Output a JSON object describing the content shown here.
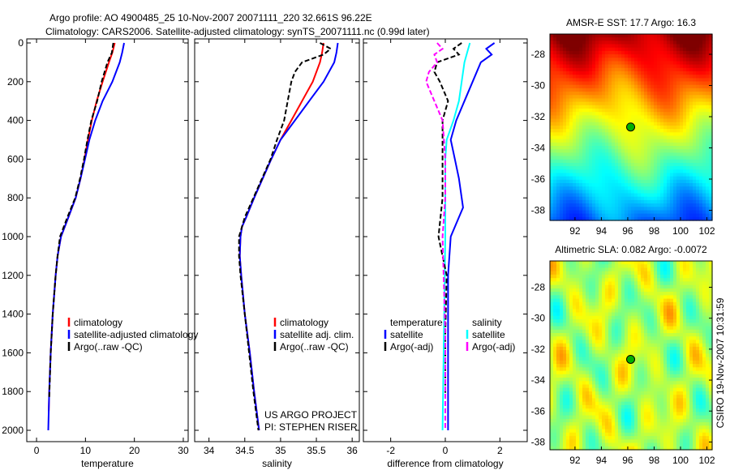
{
  "chart_data": [
    {
      "type": "line",
      "title": "Argo profile: AO 4900485_25 10-Nov-2007 20071111_220 32.661S 96.22E",
      "subtitle": "Climatology: CARS2006. Satellite-adjusted climatology: synTS_20071111.nc (0.99d later)",
      "xlabel": "temperature",
      "xlim": [
        -2,
        31
      ],
      "ylim": [
        2050,
        0
      ],
      "xticks": [
        0,
        10,
        20,
        30
      ],
      "yticks": [
        0,
        200,
        400,
        600,
        800,
        1000,
        1200,
        1400,
        1600,
        1800,
        2000
      ],
      "legend": [
        "climatology",
        "satellite-adjusted climatology",
        "Argo(..raw -QC)"
      ],
      "series": [
        {
          "name": "climatology",
          "color": "#ff0000",
          "depth": [
            0,
            50,
            100,
            200,
            300,
            400,
            500,
            600,
            700,
            800,
            900,
            1000,
            1100,
            1200,
            1400,
            1600,
            1800,
            1900
          ],
          "values": [
            16,
            15.5,
            14.8,
            13.5,
            12.3,
            11.3,
            10.5,
            9.8,
            9.0,
            8.0,
            6.5,
            5.0,
            4.3,
            3.9,
            3.3,
            2.9,
            2.6,
            2.5
          ]
        },
        {
          "name": "satellite-adjusted climatology",
          "color": "#0000ff",
          "depth": [
            0,
            50,
            100,
            200,
            300,
            400,
            500,
            600,
            700,
            800,
            900,
            1000,
            1100,
            1200,
            1400,
            1600,
            1800,
            2000
          ],
          "values": [
            17.9,
            17.5,
            17.0,
            15.5,
            13.5,
            12.0,
            10.8,
            9.9,
            9.0,
            8.0,
            6.5,
            5.0,
            4.3,
            3.9,
            3.3,
            2.9,
            2.6,
            2.4
          ]
        },
        {
          "name": "Argo(..raw -QC)",
          "color": "#000000",
          "dash": true,
          "depth": [
            0,
            50,
            100,
            200,
            300,
            400,
            500,
            600,
            700,
            800,
            900,
            1000,
            1100,
            1200,
            1400,
            1600,
            1830
          ],
          "values": [
            15.7,
            15.4,
            14.5,
            13.3,
            12.4,
            11.2,
            10.4,
            9.7,
            8.9,
            7.9,
            6.3,
            4.8,
            4.3,
            3.9,
            3.3,
            2.9,
            2.6
          ]
        }
      ]
    },
    {
      "type": "line",
      "xlabel": "salinity",
      "xlim": [
        33.8,
        36.1
      ],
      "ylim": [
        2050,
        0
      ],
      "xticks": [
        34,
        34.5,
        35,
        35.5,
        36
      ],
      "legend": [
        "climatology",
        "satellite adj. clim.",
        "Argo(..raw -QC)"
      ],
      "annotation": [
        "US ARGO PROJECT",
        "PI: STEPHEN RISER"
      ],
      "series": [
        {
          "name": "climatology",
          "color": "#ff0000",
          "depth": [
            0,
            50,
            100,
            200,
            300,
            400,
            500,
            600,
            700,
            800,
            900,
            950,
            1000,
            1100,
            1200,
            1400,
            1600,
            1800,
            2000
          ],
          "values": [
            35.6,
            35.58,
            35.55,
            35.45,
            35.3,
            35.15,
            35.0,
            34.87,
            34.75,
            34.63,
            34.52,
            34.46,
            34.44,
            34.43,
            34.45,
            34.5,
            34.57,
            34.63,
            34.7
          ]
        },
        {
          "name": "satellite adj. clim.",
          "color": "#0000ff",
          "depth": [
            0,
            50,
            100,
            200,
            300,
            400,
            500,
            600,
            700,
            800,
            900,
            950,
            1000,
            1100,
            1200,
            1400,
            1600,
            1800,
            2000
          ],
          "values": [
            35.8,
            35.78,
            35.75,
            35.6,
            35.4,
            35.2,
            35.0,
            34.87,
            34.75,
            34.63,
            34.52,
            34.46,
            34.44,
            34.43,
            34.45,
            34.5,
            34.57,
            34.63,
            34.7
          ]
        },
        {
          "name": "Argo(..raw -QC)",
          "color": "#000000",
          "dash": true,
          "depth": [
            0,
            30,
            60,
            100,
            150,
            200,
            300,
            400,
            500,
            600,
            700,
            800,
            900,
            1000,
            1100,
            1200,
            1400,
            1600,
            1800,
            2000
          ],
          "values": [
            35.55,
            35.7,
            35.6,
            35.3,
            35.2,
            35.15,
            35.1,
            35.05,
            34.95,
            34.86,
            34.74,
            34.62,
            34.5,
            34.42,
            34.42,
            34.44,
            34.5,
            34.56,
            34.62,
            34.69
          ]
        }
      ]
    },
    {
      "type": "line",
      "xlabel": "difference from climatology",
      "xlim": [
        -3,
        3
      ],
      "ylim": [
        2050,
        0
      ],
      "xticks": [
        -2,
        0,
        2
      ],
      "legend_headers": [
        "temperature",
        "salinity"
      ],
      "legend": [
        "satellite",
        "Argo(-adj)",
        "satellite",
        "Argo(-adj)"
      ],
      "series": [
        {
          "name": "temperature satellite",
          "color": "#0000ff",
          "depth": [
            0,
            30,
            60,
            100,
            200,
            300,
            400,
            500,
            600,
            700,
            800,
            850,
            900,
            1000,
            1200,
            1600,
            2000
          ],
          "values": [
            1.8,
            1.5,
            1.7,
            1.3,
            1.0,
            0.7,
            0.4,
            0.2,
            0.35,
            0.5,
            0.6,
            0.65,
            0.5,
            0.2,
            0.1,
            0.1,
            0.1
          ]
        },
        {
          "name": "salinity satellite",
          "color": "#00ffff",
          "depth": [
            0,
            50,
            100,
            200,
            300,
            400,
            500,
            600,
            1000,
            1500,
            2000
          ],
          "values": [
            0.9,
            0.8,
            0.7,
            0.6,
            0.5,
            0.3,
            0.05,
            0,
            0,
            -0.05,
            -0.1
          ]
        },
        {
          "name": "temperature Argo(-adj)",
          "color": "#000000",
          "dash": true,
          "depth": [
            0,
            30,
            60,
            100,
            150,
            200,
            300,
            400,
            600,
            800,
            1000,
            1100,
            1200,
            1500,
            1830
          ],
          "values": [
            0.6,
            0.3,
            0.5,
            -0.3,
            -0.4,
            -0.2,
            0.1,
            -0.1,
            -0.1,
            -0.1,
            -0.25,
            -0.1,
            0.05,
            0,
            0
          ]
        },
        {
          "name": "salinity Argo(-adj)",
          "color": "#ff00ff",
          "dash": true,
          "depth": [
            0,
            30,
            60,
            100,
            150,
            200,
            300,
            400,
            600,
            800,
            1000,
            1500,
            2000
          ],
          "values": [
            -0.3,
            -0.1,
            -0.4,
            -0.3,
            -0.6,
            -0.7,
            -0.4,
            -0.1,
            0,
            0,
            -0.1,
            0,
            0
          ]
        }
      ]
    },
    {
      "type": "heatmap",
      "title": "AMSR-E SST: 17.7 Argo: 16.3",
      "xlim": [
        90.1,
        102.4
      ],
      "ylim": [
        -38.65,
        -26.7
      ],
      "xticks": [
        92,
        94,
        96,
        98,
        100,
        102
      ],
      "yticks": [
        -28,
        -30,
        -32,
        -34,
        -36,
        -38
      ],
      "marker": {
        "lon": 96.22,
        "lat": -32.661
      }
    },
    {
      "type": "heatmap",
      "title": "Altimetric SLA: 0.082 Argo: -0.0072",
      "xlim": [
        90.1,
        102.4
      ],
      "ylim": [
        -38.5,
        -26.3
      ],
      "xticks": [
        92,
        94,
        96,
        98,
        100,
        102
      ],
      "yticks": [
        -28,
        -30,
        -32,
        -34,
        -36,
        -38
      ],
      "marker": {
        "lon": 96.22,
        "lat": -32.661
      },
      "side_label": "CSIRO 19-Nov-2007 10:31:59"
    }
  ]
}
